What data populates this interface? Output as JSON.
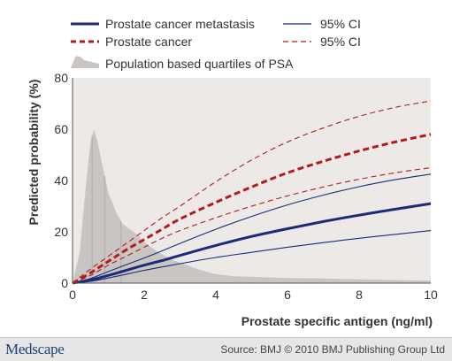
{
  "chart_data": {
    "type": "line",
    "xlabel": "Prostate specific antigen (ng/ml)",
    "ylabel": "Predicted probability (%)",
    "xlim": [
      0,
      10
    ],
    "ylim": [
      0,
      80
    ],
    "xticks": [
      0,
      2,
      4,
      6,
      8,
      10
    ],
    "yticks": [
      0,
      20,
      40,
      60,
      80
    ],
    "grid": false,
    "legend_position": "top",
    "legend": [
      {
        "label": "Prostate cancer metastasis",
        "style": "thick-solid",
        "color": "#1c2a7a"
      },
      {
        "label": "95% CI",
        "style": "thin-solid",
        "color": "#1c2a7a"
      },
      {
        "label": "Prostate cancer",
        "style": "thick-dashed",
        "color": "#b01c1c"
      },
      {
        "label": "95% CI",
        "style": "thin-dashed",
        "color": "#b01c1c"
      },
      {
        "label": "Population based quartiles of PSA",
        "style": "area",
        "color": "#c9c5c2"
      }
    ],
    "x": [
      0,
      0.5,
      1,
      1.5,
      2,
      2.5,
      3,
      4,
      5,
      6,
      7,
      8,
      9,
      10
    ],
    "series": [
      {
        "name": "Prostate cancer metastasis",
        "color": "#1c2a7a",
        "dash": false,
        "width": 3,
        "values": [
          0,
          1.2,
          3,
          5,
          7,
          8.8,
          10.8,
          14.7,
          18.2,
          21.2,
          24,
          26.5,
          28.8,
          31
        ]
      },
      {
        "name": "95% CI",
        "color": "#1c2a7a",
        "dash": false,
        "width": 1,
        "values": [
          0,
          1.8,
          4.5,
          7.2,
          9.8,
          12.6,
          15.5,
          21,
          26,
          30.5,
          34.3,
          37.6,
          40.3,
          42.5
        ]
      },
      {
        "name": "95% CI",
        "color": "#1c2a7a",
        "dash": false,
        "width": 1,
        "values": [
          0,
          0.7,
          2,
          3.5,
          5,
          6.3,
          7.6,
          10,
          12,
          14,
          15.8,
          17.5,
          19,
          20.5
        ]
      },
      {
        "name": "Prostate cancer",
        "color": "#b01c1c",
        "dash": true,
        "width": 3,
        "values": [
          0,
          4,
          8.5,
          13,
          17,
          21,
          25,
          31.5,
          37.5,
          43,
          47.5,
          51.5,
          55,
          58
        ]
      },
      {
        "name": "95% CI",
        "color": "#b01c1c",
        "dash": true,
        "width": 1,
        "values": [
          0,
          5.5,
          10.5,
          15.5,
          20.5,
          25.5,
          30,
          39.5,
          48,
          55,
          60.5,
          65,
          68.5,
          71
        ]
      },
      {
        "name": "95% CI",
        "color": "#b01c1c",
        "dash": true,
        "width": 1,
        "values": [
          0,
          3,
          7,
          10.5,
          14,
          17.5,
          20.5,
          25.5,
          30,
          34,
          37.5,
          40.5,
          43,
          45
        ]
      }
    ],
    "population_area": {
      "color": "#c9c5c2",
      "quartile_color": "#b8b4b1",
      "x": [
        0,
        0.2,
        0.35,
        0.5,
        0.6,
        0.7,
        0.85,
        1.0,
        1.1,
        1.2,
        1.4,
        1.6,
        1.8,
        2.0,
        2.4,
        2.8,
        3.2,
        3.6,
        4.0,
        4.5,
        5.0,
        6.0,
        7.0,
        8.0,
        9.0,
        10.0
      ],
      "y": [
        0,
        12,
        35,
        55,
        60,
        55,
        45,
        35,
        32,
        28,
        23,
        21,
        19,
        16,
        12,
        9,
        7,
        5,
        3.5,
        2.7,
        2.5,
        2,
        1.8,
        1.5,
        1.2,
        1
      ],
      "quartile_bounds": [
        0.55,
        0.9,
        1.35
      ]
    }
  },
  "footer": {
    "logo": "Medscape",
    "source": "Source: BMJ © 2010 BMJ Publishing Group Ltd"
  },
  "colors": {
    "plot_background": "#ece9e7",
    "footer_background": "#e6e6e6",
    "navy": "#1c2a7a",
    "red": "#b01c1c"
  }
}
